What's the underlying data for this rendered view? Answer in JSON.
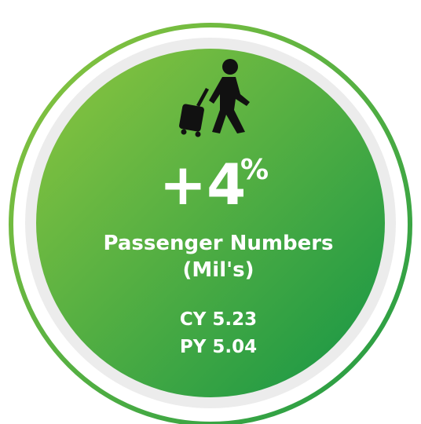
{
  "metric": {
    "change": "+4",
    "change_unit": "%",
    "title_line1": "Passenger Numbers",
    "title_line2": "(Mil's)",
    "current_year": "CY 5.23",
    "previous_year": "PY 5.04"
  }
}
